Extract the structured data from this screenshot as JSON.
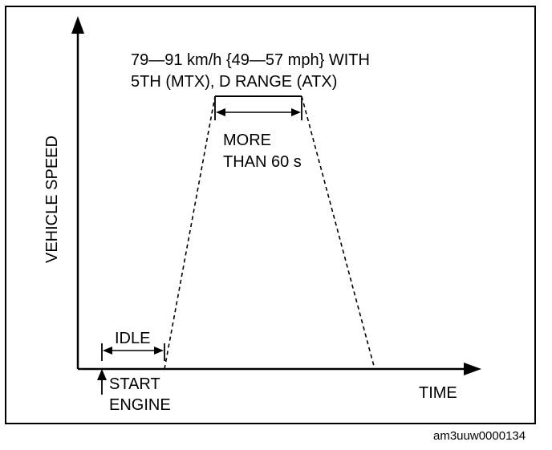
{
  "diagram": {
    "speed_label_line1": "79—91 km/h {49—57 mph} WITH",
    "speed_label_line2": "5TH (MTX), D RANGE (ATX)",
    "duration_label_line1": "MORE",
    "duration_label_line2": "THAN 60 s",
    "idle_label": "IDLE",
    "start_label_line1": "START",
    "start_label_line2": "ENGINE",
    "y_axis_label": "VEHICLE SPEED",
    "x_axis_label": "TIME",
    "reference_code": "am3uuw0000134"
  },
  "colors": {
    "ink": "#000000",
    "background": "#ffffff"
  }
}
